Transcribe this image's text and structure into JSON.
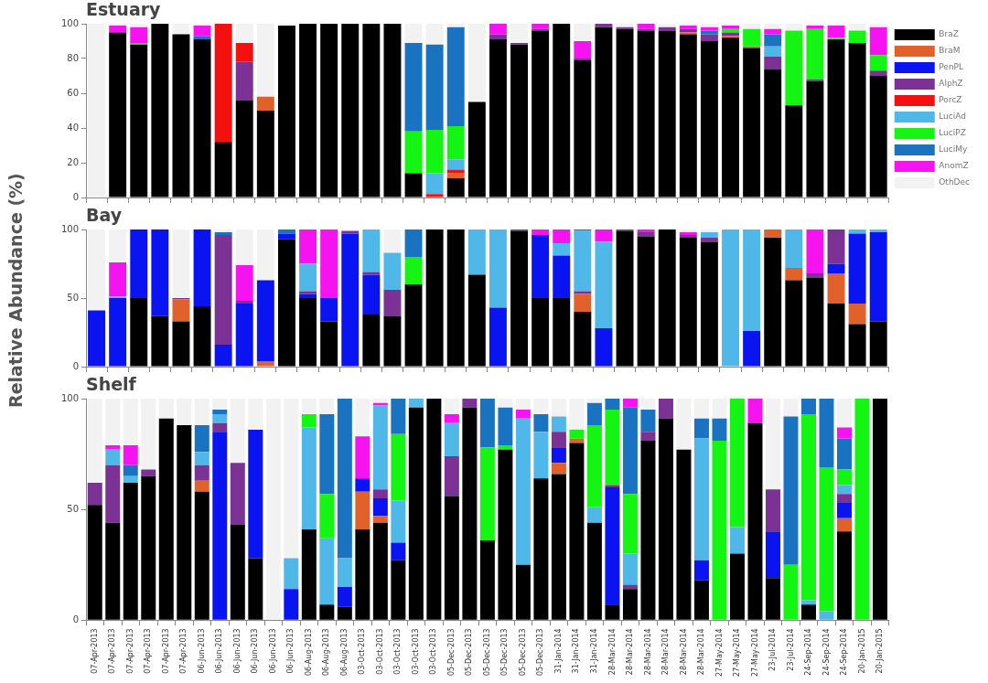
{
  "chart_data": [
    {
      "type": "bar",
      "title": "Estuary",
      "stacked": true,
      "legend": "right",
      "grid": false,
      "tick_labels": "y",
      "ylim": [
        0,
        100
      ],
      "yticks": [
        0,
        20,
        40,
        60,
        80,
        100
      ],
      "categories": [
        null,
        null,
        null,
        null,
        null,
        null,
        null,
        null,
        null,
        null,
        null,
        null,
        null,
        null,
        null,
        null,
        null,
        null,
        null,
        null,
        null,
        null,
        null,
        null,
        null,
        null,
        null,
        null,
        null,
        null,
        null,
        null,
        null,
        null,
        null,
        null,
        null,
        null
      ],
      "series": [
        {
          "name": "BraZ",
          "color": "#000000",
          "values": [
            0,
            95,
            88,
            100,
            94,
            91,
            32,
            56,
            50,
            99,
            100,
            100,
            100,
            100,
            100,
            14,
            0,
            11,
            55,
            91,
            88,
            96,
            100,
            79,
            98,
            97,
            96,
            96,
            94,
            90,
            92,
            86,
            74,
            53,
            67,
            91,
            89,
            70
          ]
        },
        {
          "name": "BraM",
          "color": "#e0622a",
          "values": [
            0,
            0,
            0,
            0,
            0,
            0,
            0,
            0,
            8,
            0,
            0,
            0,
            0,
            0,
            0,
            0,
            0,
            3,
            0,
            0,
            0,
            0,
            0,
            0,
            0,
            0,
            0,
            0,
            1,
            0,
            1,
            1,
            0,
            0,
            0,
            0,
            0,
            0
          ]
        },
        {
          "name": "PenPL",
          "color": "#0a14f0",
          "values": [
            0,
            0,
            0,
            0,
            0,
            0,
            0,
            0,
            0,
            0,
            0,
            0,
            0,
            0,
            0,
            0,
            0,
            0,
            0,
            0,
            0,
            0,
            0,
            0,
            0,
            0,
            0,
            0,
            0,
            0,
            0,
            0,
            0,
            0,
            0,
            0,
            0,
            0
          ]
        },
        {
          "name": "AlphZ",
          "color": "#7b3294",
          "values": [
            0,
            0,
            0,
            0,
            0,
            0,
            0,
            22,
            0,
            0,
            0,
            0,
            0,
            0,
            0,
            0,
            0,
            0,
            0,
            3,
            1,
            1,
            0,
            1,
            2,
            1,
            1,
            2,
            2,
            4,
            2,
            0,
            7,
            0,
            1,
            0,
            0,
            3
          ]
        },
        {
          "name": "PorcZ",
          "color": "#f51010",
          "values": [
            0,
            0,
            0,
            0,
            0,
            0,
            68,
            11,
            0,
            0,
            0,
            0,
            0,
            0,
            0,
            0,
            2,
            2,
            0,
            0,
            0,
            0,
            0,
            0,
            0,
            0,
            0,
            0,
            0,
            0,
            0,
            0,
            0,
            0,
            0,
            0,
            0,
            0
          ]
        },
        {
          "name": "LuciAd",
          "color": "#4fb8e8",
          "values": [
            0,
            0,
            0,
            0,
            0,
            0,
            0,
            0,
            0,
            0,
            0,
            0,
            0,
            0,
            0,
            0,
            12,
            6,
            0,
            0,
            0,
            0,
            0,
            0,
            0,
            0,
            0,
            0,
            0,
            0,
            0,
            0,
            6,
            0,
            0,
            0,
            0,
            0
          ]
        },
        {
          "name": "LuciPZ",
          "color": "#14f514",
          "values": [
            0,
            0,
            1,
            0,
            0,
            0,
            0,
            0,
            0,
            0,
            0,
            0,
            0,
            0,
            0,
            24,
            25,
            19,
            0,
            0,
            0,
            0,
            0,
            0,
            0,
            0,
            0,
            0,
            0,
            0,
            2,
            10,
            0,
            43,
            29,
            1,
            7,
            9
          ]
        },
        {
          "name": "LuciMy",
          "color": "#1a73c0",
          "values": [
            0,
            0,
            0,
            0,
            0,
            2,
            0,
            0,
            0,
            0,
            0,
            0,
            0,
            0,
            0,
            51,
            49,
            57,
            0,
            0,
            0,
            0,
            0,
            0,
            0,
            0,
            0,
            0,
            0,
            2,
            0,
            0,
            7,
            0,
            0,
            0,
            0,
            0
          ]
        },
        {
          "name": "AnomZ",
          "color": "#f514f0",
          "values": [
            0,
            4,
            9,
            0,
            0,
            6,
            0,
            0,
            0,
            0,
            0,
            0,
            0,
            0,
            0,
            0,
            0,
            0,
            0,
            6,
            0,
            3,
            0,
            10,
            0,
            0,
            3,
            0,
            2,
            2,
            2,
            0,
            3,
            0,
            2,
            7,
            0,
            16
          ]
        },
        {
          "name": "OthDec",
          "color": "#f2f2f2",
          "values": [
            100,
            1,
            2,
            0,
            6,
            1,
            0,
            11,
            42,
            1,
            0,
            0,
            0,
            0,
            0,
            11,
            12,
            2,
            45,
            0,
            11,
            0,
            0,
            10,
            0,
            2,
            0,
            2,
            1,
            2,
            1,
            3,
            3,
            4,
            1,
            1,
            4,
            2
          ]
        }
      ]
    },
    {
      "type": "bar",
      "title": "Bay",
      "ylabel": "Relative Abundance (%)",
      "stacked": true,
      "grid": false,
      "tick_labels": "y",
      "ylim": [
        0,
        100
      ],
      "yticks": [
        0,
        50,
        100
      ],
      "categories": [
        null,
        null,
        null,
        null,
        null,
        null,
        null,
        null,
        null,
        null,
        null,
        null,
        null,
        null,
        null,
        null,
        null,
        null,
        null,
        null,
        null,
        null,
        null,
        null,
        null,
        null,
        null,
        null,
        null,
        null,
        null,
        null,
        null,
        null,
        null,
        null,
        null,
        null
      ],
      "series": [
        {
          "color": "#000000",
          "values": [
            0,
            0,
            50,
            37,
            33,
            44,
            0,
            0,
            0,
            93,
            50,
            33,
            0,
            38,
            37,
            60,
            100,
            100,
            67,
            0,
            99,
            50,
            50,
            40,
            0,
            99,
            95,
            100,
            94,
            91,
            0,
            0,
            94,
            63,
            65,
            46,
            31,
            33
          ]
        },
        {
          "color": "#e0622a",
          "values": [
            0,
            0,
            0,
            0,
            16,
            0,
            0,
            0,
            4,
            0,
            0,
            0,
            0,
            0,
            0,
            0,
            0,
            0,
            0,
            0,
            0,
            0,
            0,
            13,
            0,
            0,
            0,
            0,
            0,
            0,
            0,
            0,
            6,
            9,
            0,
            22,
            15,
            0
          ]
        },
        {
          "color": "#0a14f0",
          "values": [
            41,
            50,
            50,
            63,
            0,
            56,
            16,
            46,
            59,
            4,
            3,
            17,
            97,
            29,
            0,
            0,
            0,
            0,
            0,
            43,
            0,
            46,
            31,
            0,
            28,
            0,
            0,
            0,
            0,
            0,
            0,
            26,
            0,
            0,
            0,
            7,
            51,
            65
          ]
        },
        {
          "color": "#7b3294",
          "values": [
            0,
            0,
            0,
            0,
            1,
            0,
            80,
            2,
            0,
            0,
            2,
            0,
            2,
            2,
            19,
            0,
            0,
            0,
            0,
            0,
            1,
            0,
            0,
            2,
            0,
            1,
            3,
            0,
            2,
            3,
            0,
            0,
            0,
            0,
            3,
            25,
            0,
            0
          ]
        },
        {
          "color": "#f51010",
          "values": [
            0,
            0,
            0,
            0,
            0,
            0,
            0,
            0,
            0,
            0,
            0,
            0,
            0,
            0,
            0,
            0,
            0,
            0,
            0,
            0,
            0,
            0,
            0,
            0,
            0,
            0,
            0,
            0,
            0,
            0,
            0,
            0,
            0,
            0,
            0,
            0,
            0,
            0
          ]
        },
        {
          "color": "#4fb8e8",
          "values": [
            0,
            1,
            0,
            0,
            0,
            0,
            0,
            0,
            0,
            0,
            20,
            0,
            0,
            31,
            27,
            0,
            0,
            0,
            33,
            57,
            0,
            0,
            9,
            44,
            63,
            0,
            0,
            0,
            0,
            4,
            100,
            74,
            0,
            28,
            0,
            0,
            3,
            2
          ]
        },
        {
          "color": "#14f514",
          "values": [
            0,
            0,
            0,
            0,
            0,
            0,
            0,
            0,
            0,
            0,
            0,
            0,
            0,
            0,
            0,
            20,
            0,
            0,
            0,
            0,
            0,
            0,
            0,
            0,
            0,
            0,
            0,
            0,
            0,
            0,
            0,
            0,
            0,
            0,
            0,
            0,
            0,
            0
          ]
        },
        {
          "color": "#1a73c0",
          "values": [
            0,
            0,
            0,
            0,
            0,
            0,
            2,
            0,
            0,
            3,
            0,
            0,
            0,
            0,
            0,
            20,
            0,
            0,
            0,
            0,
            0,
            0,
            0,
            1,
            0,
            0,
            0,
            0,
            0,
            0,
            0,
            0,
            0,
            0,
            0,
            0,
            0,
            0
          ]
        },
        {
          "color": "#f514f0",
          "values": [
            0,
            25,
            0,
            0,
            0,
            0,
            0,
            26,
            0,
            0,
            25,
            50,
            0,
            0,
            0,
            0,
            0,
            0,
            0,
            0,
            0,
            4,
            10,
            0,
            9,
            0,
            2,
            0,
            2,
            0,
            0,
            0,
            0,
            0,
            32,
            0,
            0,
            0
          ]
        },
        {
          "color": "#f2f2f2",
          "values": [
            59,
            24,
            0,
            0,
            50,
            0,
            2,
            26,
            37,
            0,
            0,
            0,
            null,
            0,
            17,
            0,
            0,
            0,
            0,
            0,
            0,
            0,
            0,
            0,
            0,
            0,
            0,
            0,
            2,
            2,
            0,
            0,
            0,
            0,
            0,
            0,
            0,
            0
          ]
        }
      ]
    },
    {
      "type": "bar",
      "title": "Shelf",
      "stacked": true,
      "grid": false,
      "ylim": [
        0,
        100
      ],
      "yticks": [
        0,
        50,
        100
      ],
      "categories": [
        "07-Apr-2013",
        "07-Apr-2013",
        "07-Apr-2013",
        "07-Apr-2013",
        "07-Apr-2013",
        "07-Apr-2013",
        "06-Jun-2013",
        "06-Jun-2013",
        "06-Jun-2013",
        "06-Jun-2013",
        "06-Jun-2013",
        "06-Jun-2013",
        "06-Aug-2013",
        "06-Aug-2013",
        "06-Aug-2013",
        "03-Oct-2013",
        "03-Oct-2013",
        "03-Oct-2013",
        "03-Oct-2013",
        "03-Oct-2013",
        "05-Dec-2013",
        "05-Dec-2013",
        "05-Dec-2013",
        "05-Dec-2013",
        "05-Dec-2013",
        "05-Dec-2013",
        "31-Jan-2014",
        "31-Jan-2014",
        "31-Jan-2014",
        "28-Mar-2014",
        "28-Mar-2014",
        "28-Mar-2014",
        "28-Mar-2014",
        "28-Mar-2014",
        "28-Mar-2014",
        "27-May-2014",
        "27-May-2014",
        "27-May-2014",
        "23-Jul-2014",
        "23-Jul-2014",
        "24-Sep-2014",
        "24-Sep-2014",
        "24-Sep-2014",
        "20-Jan-2015",
        "20-Jan-2015"
      ],
      "series": [
        {
          "color": "#000000",
          "values": [
            52,
            44,
            62,
            65,
            91,
            88,
            58,
            0,
            43,
            28,
            0,
            0,
            41,
            7,
            6,
            41,
            44,
            27,
            96,
            100,
            56,
            96,
            36,
            77,
            25,
            64,
            66,
            80,
            44,
            7,
            14,
            81,
            91,
            77,
            18,
            0,
            30,
            89,
            19,
            0,
            7,
            0,
            40,
            0,
            100
          ]
        },
        {
          "color": "#e0622a",
          "values": [
            0,
            0,
            0,
            0,
            0,
            0,
            5,
            0,
            0,
            0,
            0,
            0,
            0,
            0,
            0,
            17,
            3,
            0,
            0,
            0,
            0,
            0,
            0,
            0,
            0,
            0,
            5,
            2,
            0,
            0,
            0,
            0,
            0,
            0,
            0,
            0,
            0,
            0,
            0,
            0,
            0,
            0,
            6,
            0,
            0
          ]
        },
        {
          "color": "#0a14f0",
          "values": [
            0,
            0,
            0,
            0,
            0,
            0,
            0,
            85,
            0,
            58,
            0,
            14,
            0,
            0,
            9,
            6,
            8,
            8,
            0,
            0,
            0,
            0,
            0,
            0,
            0,
            0,
            7,
            0,
            0,
            53,
            0,
            0,
            0,
            0,
            9,
            0,
            0,
            0,
            21,
            0,
            0,
            0,
            7,
            0,
            0
          ]
        },
        {
          "color": "#7b3294",
          "values": [
            10,
            26,
            0,
            3,
            0,
            0,
            7,
            4,
            28,
            0,
            0,
            0,
            0,
            0,
            0,
            0,
            4,
            0,
            0,
            0,
            18,
            4,
            0,
            0,
            0,
            0,
            7,
            0,
            0,
            1,
            2,
            4,
            9,
            0,
            0,
            0,
            0,
            0,
            19,
            0,
            0,
            0,
            4,
            0,
            0
          ]
        },
        {
          "color": "#f51010",
          "values": [
            0,
            0,
            0,
            0,
            0,
            0,
            0,
            0,
            0,
            0,
            0,
            0,
            0,
            0,
            0,
            0,
            0,
            0,
            0,
            0,
            0,
            0,
            0,
            0,
            0,
            0,
            0,
            0,
            0,
            0,
            0,
            0,
            0,
            0,
            0,
            0,
            0,
            0,
            0,
            0,
            0,
            0,
            0,
            0,
            0
          ]
        },
        {
          "color": "#4fb8e8",
          "values": [
            0,
            7,
            3,
            0,
            0,
            0,
            6,
            4,
            0,
            0,
            0,
            14,
            46,
            30,
            13,
            0,
            38,
            19,
            4,
            0,
            15,
            0,
            0,
            0,
            66,
            21,
            7,
            0,
            7,
            0,
            14,
            0,
            0,
            0,
            55,
            0,
            12,
            0,
            0,
            0,
            2,
            4,
            4,
            0,
            0
          ]
        },
        {
          "color": "#14f514",
          "values": [
            0,
            0,
            0,
            0,
            0,
            0,
            0,
            0,
            0,
            0,
            0,
            0,
            6,
            20,
            0,
            0,
            0,
            30,
            0,
            0,
            0,
            0,
            42,
            2,
            0,
            0,
            0,
            4,
            37,
            34,
            27,
            0,
            0,
            0,
            0,
            81,
            58,
            0,
            0,
            25,
            84,
            65,
            7,
            100,
            0
          ]
        },
        {
          "color": "#1a73c0",
          "values": [
            0,
            0,
            5,
            0,
            0,
            0,
            12,
            2,
            0,
            0,
            0,
            0,
            0,
            36,
            72,
            0,
            0,
            16,
            0,
            0,
            0,
            0,
            22,
            17,
            0,
            8,
            0,
            0,
            10,
            5,
            39,
            10,
            0,
            0,
            9,
            10,
            0,
            0,
            0,
            67,
            7,
            31,
            14,
            0,
            0
          ]
        },
        {
          "color": "#f514f0",
          "values": [
            0,
            2,
            9,
            0,
            0,
            0,
            0,
            0,
            0,
            0,
            0,
            0,
            0,
            0,
            0,
            19,
            1,
            0,
            0,
            0,
            4,
            0,
            0,
            0,
            4,
            0,
            0,
            0,
            0,
            0,
            4,
            0,
            0,
            0,
            0,
            0,
            0,
            11,
            0,
            0,
            0,
            0,
            5,
            0,
            0
          ]
        },
        {
          "color": "#f2f2f2",
          "values": [
            38,
            21,
            21,
            32,
            9,
            12,
            12,
            5,
            29,
            14,
            100,
            72,
            7,
            7,
            0,
            17,
            2,
            0,
            0,
            0,
            7,
            0,
            0,
            4,
            5,
            7,
            8,
            14,
            2,
            0,
            0,
            5,
            0,
            23,
            9,
            9,
            0,
            0,
            41,
            8,
            0,
            0,
            13,
            0,
            0
          ]
        }
      ]
    }
  ]
}
